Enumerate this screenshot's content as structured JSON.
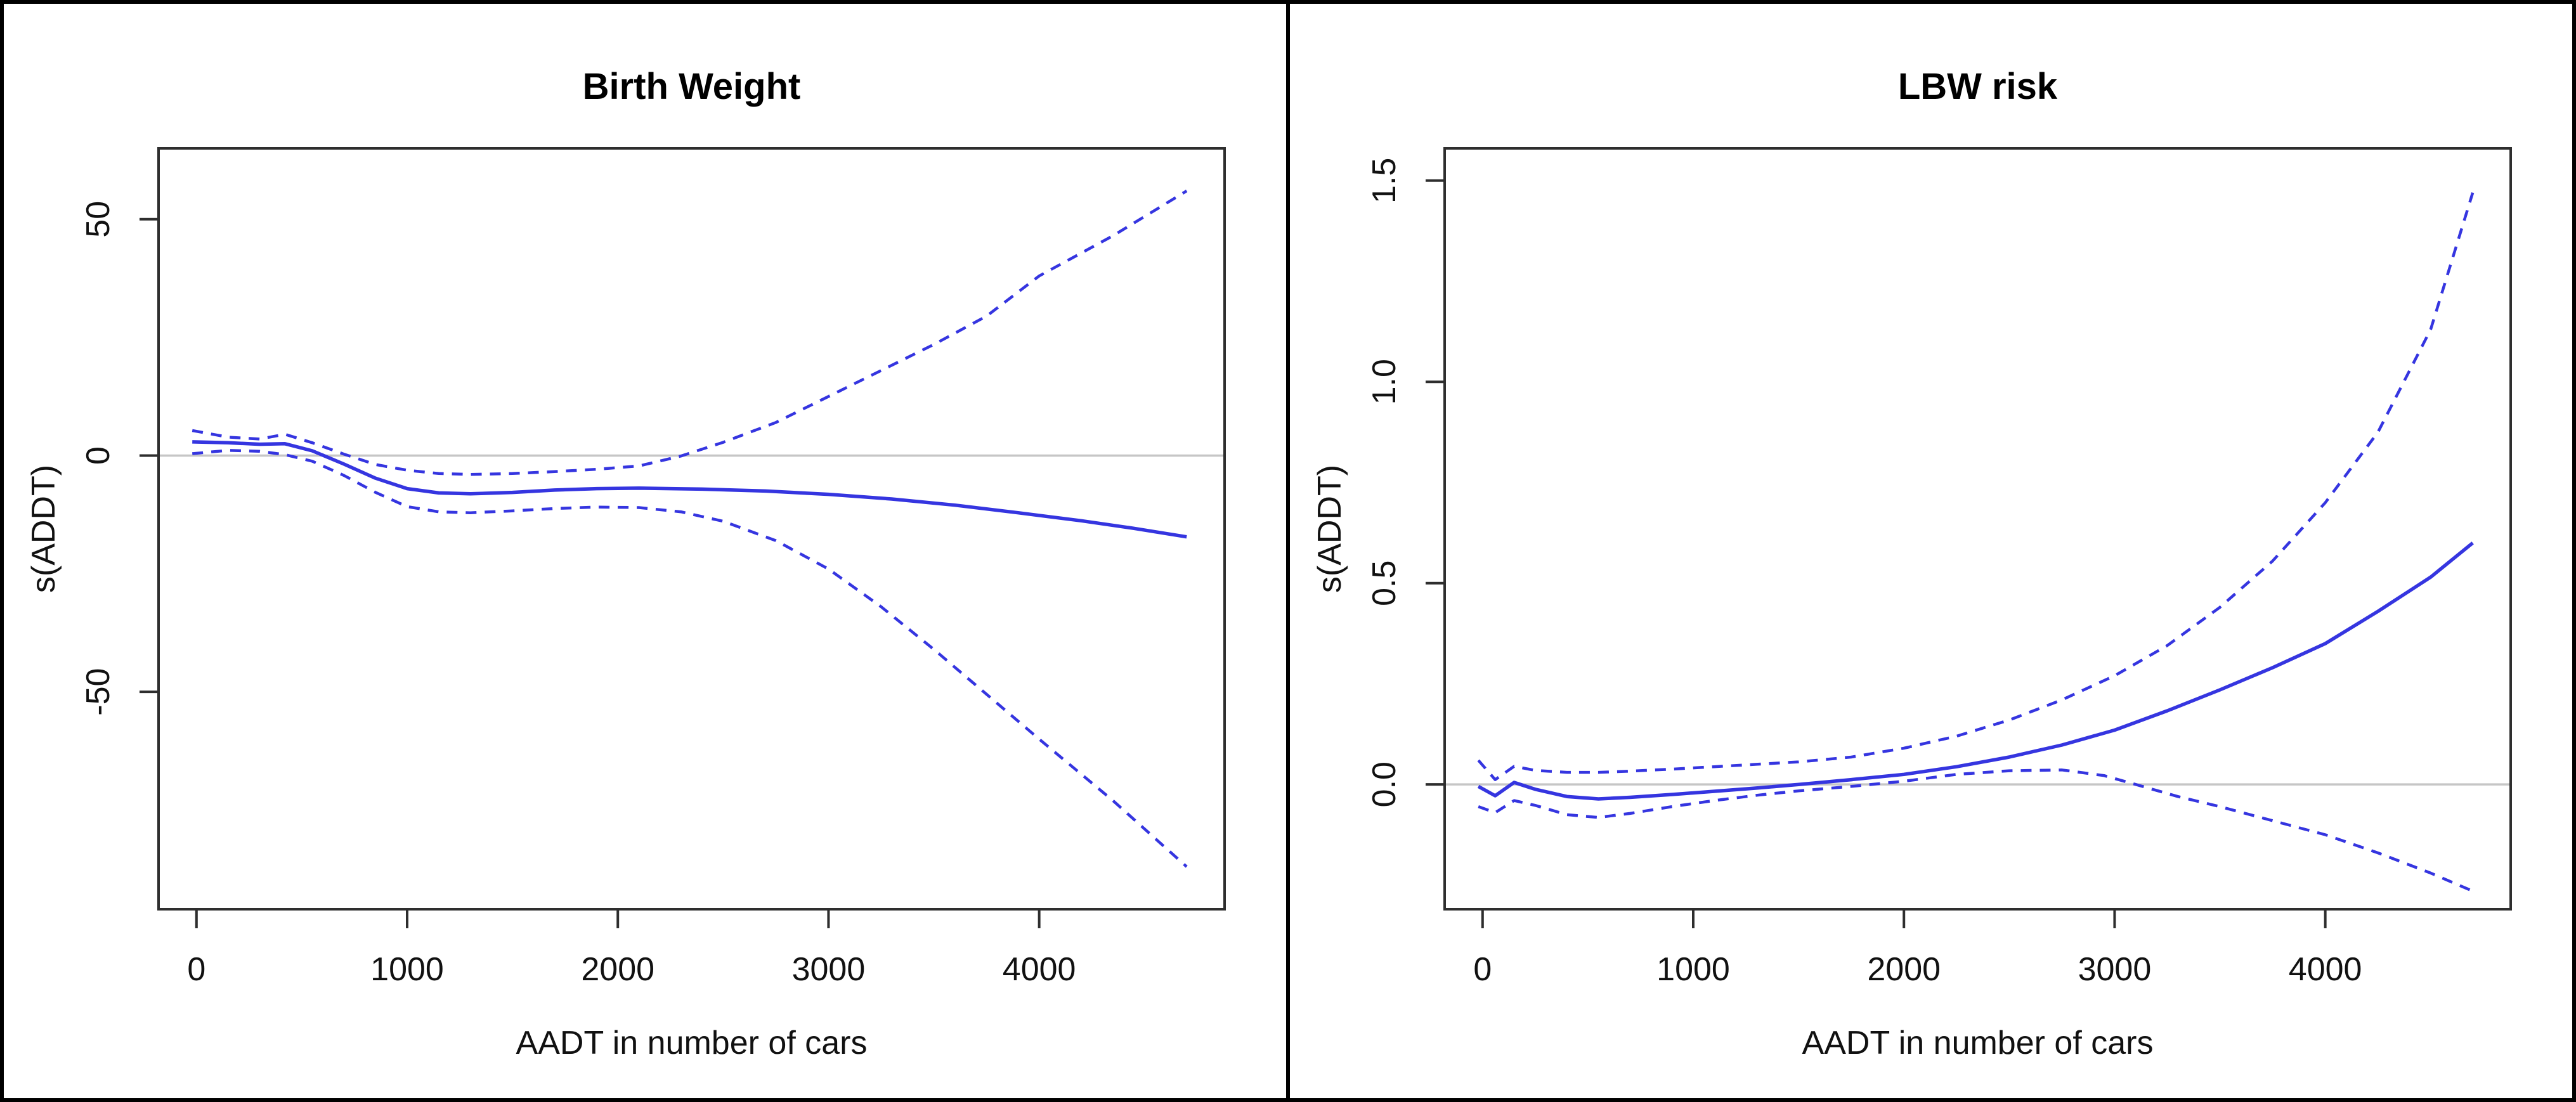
{
  "figure": {
    "background": "#ffffff",
    "border_color": "#000000",
    "panel_count": 2
  },
  "style": {
    "curve_color": "#3535e0",
    "zero_line_color": "#c6c6c6",
    "axis_color": "#2e2e2e",
    "text_color": "#111111",
    "ci_dash_pattern": "17 13"
  },
  "chart_data": [
    {
      "type": "line",
      "title": "Birth Weight",
      "xlabel": "AADT in number of cars",
      "ylabel": "s(ADDT)",
      "xlim": [
        -180,
        4880
      ],
      "ylim": [
        -96,
        65
      ],
      "x_ticks": [
        0,
        1000,
        2000,
        3000,
        4000
      ],
      "x_tick_labels": [
        "0",
        "1000",
        "2000",
        "3000",
        "4000"
      ],
      "y_ticks": [
        -50,
        0,
        50
      ],
      "y_tick_labels": [
        "-50",
        "0",
        "50"
      ],
      "grid": false,
      "legend": "none",
      "reference_line_y": 0,
      "series": [
        {
          "name": "fit",
          "style": "solid",
          "points": [
            [
              -20,
              2.9
            ],
            [
              150,
              2.7
            ],
            [
              300,
              2.4
            ],
            [
              420,
              2.5
            ],
            [
              550,
              1.0
            ],
            [
              700,
              -1.8
            ],
            [
              850,
              -4.8
            ],
            [
              1000,
              -7.0
            ],
            [
              1150,
              -7.9
            ],
            [
              1300,
              -8.1
            ],
            [
              1500,
              -7.8
            ],
            [
              1700,
              -7.3
            ],
            [
              1900,
              -7.0
            ],
            [
              2100,
              -6.9
            ],
            [
              2400,
              -7.1
            ],
            [
              2700,
              -7.5
            ],
            [
              3000,
              -8.2
            ],
            [
              3300,
              -9.2
            ],
            [
              3600,
              -10.5
            ],
            [
              3900,
              -12.1
            ],
            [
              4200,
              -13.8
            ],
            [
              4450,
              -15.4
            ],
            [
              4700,
              -17.2
            ]
          ]
        },
        {
          "name": "upper-95ci",
          "style": "dashed",
          "points": [
            [
              -20,
              5.3
            ],
            [
              150,
              3.9
            ],
            [
              300,
              3.5
            ],
            [
              420,
              4.5
            ],
            [
              550,
              2.7
            ],
            [
              700,
              0.3
            ],
            [
              850,
              -1.9
            ],
            [
              1000,
              -3.1
            ],
            [
              1150,
              -3.8
            ],
            [
              1300,
              -4.0
            ],
            [
              1500,
              -3.8
            ],
            [
              1700,
              -3.4
            ],
            [
              1900,
              -2.9
            ],
            [
              2100,
              -2.2
            ],
            [
              2300,
              -0.1
            ],
            [
              2500,
              2.8
            ],
            [
              2750,
              7.0
            ],
            [
              3000,
              12.5
            ],
            [
              3250,
              18.0
            ],
            [
              3500,
              23.5
            ],
            [
              3750,
              29.5
            ],
            [
              4000,
              38.0
            ],
            [
              4350,
              46.5
            ],
            [
              4700,
              56.0
            ]
          ]
        },
        {
          "name": "lower-95ci",
          "style": "dashed",
          "points": [
            [
              -20,
              0.4
            ],
            [
              150,
              1.1
            ],
            [
              300,
              0.9
            ],
            [
              420,
              0.2
            ],
            [
              550,
              -1.2
            ],
            [
              700,
              -4.2
            ],
            [
              850,
              -7.8
            ],
            [
              1000,
              -10.8
            ],
            [
              1150,
              -11.9
            ],
            [
              1300,
              -12.1
            ],
            [
              1500,
              -11.7
            ],
            [
              1700,
              -11.2
            ],
            [
              1900,
              -10.9
            ],
            [
              2100,
              -11.0
            ],
            [
              2300,
              -11.9
            ],
            [
              2500,
              -13.9
            ],
            [
              2750,
              -18.0
            ],
            [
              3000,
              -24.0
            ],
            [
              3250,
              -32.0
            ],
            [
              3500,
              -41.0
            ],
            [
              3750,
              -50.5
            ],
            [
              4000,
              -60.0
            ],
            [
              4350,
              -73.0
            ],
            [
              4700,
              -87.0
            ]
          ]
        }
      ]
    },
    {
      "type": "line",
      "title": "LBW risk",
      "xlabel": "AADT in number of cars",
      "ylabel": "s(ADDT)",
      "xlim": [
        -180,
        4880
      ],
      "ylim": [
        -0.31,
        1.58
      ],
      "x_ticks": [
        0,
        1000,
        2000,
        3000,
        4000
      ],
      "x_tick_labels": [
        "0",
        "1000",
        "2000",
        "3000",
        "4000"
      ],
      "y_ticks": [
        0,
        0.5,
        1.0,
        1.5
      ],
      "y_tick_labels": [
        "0.0",
        "0.5",
        "1.0",
        "1.5"
      ],
      "grid": false,
      "legend": "none",
      "reference_line_y": 0,
      "series": [
        {
          "name": "fit",
          "style": "solid",
          "points": [
            [
              -20,
              -0.005
            ],
            [
              60,
              -0.028
            ],
            [
              150,
              0.005
            ],
            [
              250,
              -0.012
            ],
            [
              400,
              -0.03
            ],
            [
              550,
              -0.036
            ],
            [
              700,
              -0.032
            ],
            [
              900,
              -0.025
            ],
            [
              1100,
              -0.017
            ],
            [
              1300,
              -0.009
            ],
            [
              1500,
              0.0
            ],
            [
              1750,
              0.012
            ],
            [
              2000,
              0.025
            ],
            [
              2250,
              0.044
            ],
            [
              2500,
              0.068
            ],
            [
              2750,
              0.098
            ],
            [
              3000,
              0.135
            ],
            [
              3250,
              0.183
            ],
            [
              3500,
              0.235
            ],
            [
              3750,
              0.29
            ],
            [
              4000,
              0.35
            ],
            [
              4250,
              0.43
            ],
            [
              4500,
              0.515
            ],
            [
              4700,
              0.6
            ]
          ]
        },
        {
          "name": "upper-95ci",
          "style": "dashed",
          "points": [
            [
              -20,
              0.06
            ],
            [
              60,
              0.012
            ],
            [
              150,
              0.045
            ],
            [
              250,
              0.035
            ],
            [
              400,
              0.03
            ],
            [
              550,
              0.03
            ],
            [
              700,
              0.033
            ],
            [
              900,
              0.038
            ],
            [
              1100,
              0.044
            ],
            [
              1300,
              0.05
            ],
            [
              1500,
              0.056
            ],
            [
              1750,
              0.068
            ],
            [
              2000,
              0.09
            ],
            [
              2250,
              0.12
            ],
            [
              2500,
              0.16
            ],
            [
              2750,
              0.21
            ],
            [
              3000,
              0.27
            ],
            [
              3250,
              0.345
            ],
            [
              3500,
              0.44
            ],
            [
              3750,
              0.555
            ],
            [
              4000,
              0.7
            ],
            [
              4250,
              0.875
            ],
            [
              4500,
              1.13
            ],
            [
              4700,
              1.47
            ]
          ]
        },
        {
          "name": "lower-95ci",
          "style": "dashed",
          "points": [
            [
              -20,
              -0.055
            ],
            [
              60,
              -0.07
            ],
            [
              150,
              -0.04
            ],
            [
              250,
              -0.052
            ],
            [
              400,
              -0.075
            ],
            [
              550,
              -0.082
            ],
            [
              700,
              -0.072
            ],
            [
              900,
              -0.055
            ],
            [
              1100,
              -0.04
            ],
            [
              1300,
              -0.027
            ],
            [
              1500,
              -0.016
            ],
            [
              1750,
              -0.005
            ],
            [
              2000,
              0.008
            ],
            [
              2250,
              0.025
            ],
            [
              2500,
              0.034
            ],
            [
              2750,
              0.036
            ],
            [
              2950,
              0.022
            ],
            [
              3100,
              0.0
            ],
            [
              3300,
              -0.03
            ],
            [
              3500,
              -0.055
            ],
            [
              3750,
              -0.09
            ],
            [
              4000,
              -0.125
            ],
            [
              4250,
              -0.17
            ],
            [
              4500,
              -0.22
            ],
            [
              4700,
              -0.265
            ]
          ]
        }
      ]
    }
  ]
}
